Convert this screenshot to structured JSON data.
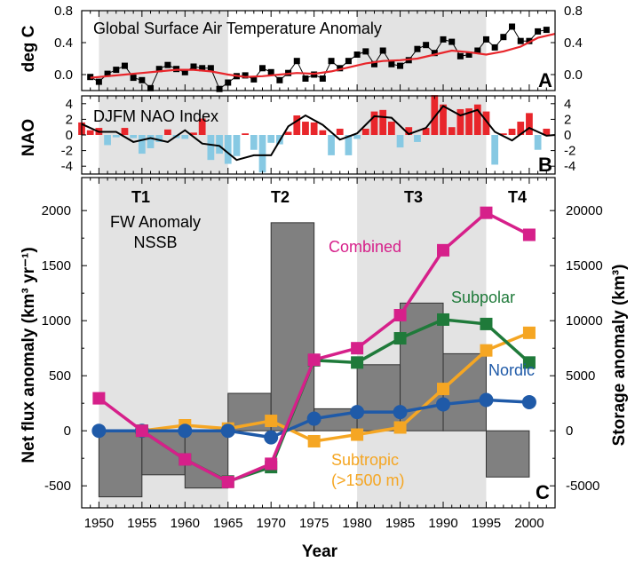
{
  "figure": {
    "xlabel": "Year",
    "x_ticks": [
      1950,
      1955,
      1960,
      1965,
      1970,
      1975,
      1980,
      1985,
      1990,
      1995,
      2000
    ],
    "periods": [
      "T1",
      "T2",
      "T3",
      "T4"
    ],
    "shaded_spans": [
      [
        1950,
        1965
      ],
      [
        1980,
        1995
      ]
    ],
    "colors": {
      "shade": "#e3e3e3",
      "combined": "#d6208a",
      "subpolar": "#1f7a3a",
      "nordic": "#1f5aa8",
      "subtropic": "#f5a623",
      "bars": "#808080",
      "nao_pos": "#e8262b",
      "nao_neg": "#87c9e3",
      "temp_smooth": "#e8262b"
    }
  },
  "chart_data": [
    {
      "panel": "A",
      "type": "line",
      "title": "Global Surface Air Temperature Anomaly",
      "ylabel": "deg C",
      "yticks": [
        0.0,
        0.4,
        0.8
      ],
      "ytick_labels": [
        "0.0",
        "0.4",
        "0.8"
      ],
      "ylim": [
        -0.2,
        0.8
      ],
      "xlim": [
        1948,
        2003
      ],
      "series": [
        {
          "x": [
            1949,
            1950,
            1951,
            1952,
            1953,
            1954,
            1955,
            1956,
            1957,
            1958,
            1959,
            1960,
            1961,
            1962,
            1963,
            1964,
            1965,
            1966,
            1967,
            1968,
            1969,
            1970,
            1971,
            1972,
            1973,
            1974,
            1975,
            1976,
            1977,
            1978,
            1979,
            1980,
            1981,
            1982,
            1983,
            1984,
            1985,
            1986,
            1987,
            1988,
            1989,
            1990,
            1991,
            1992,
            1993,
            1994,
            1995,
            1996,
            1997,
            1998,
            1999,
            2000,
            2001,
            2002
          ],
          "values": [
            -0.03,
            -0.09,
            0.01,
            0.06,
            0.11,
            -0.04,
            -0.07,
            -0.17,
            0.07,
            0.12,
            0.07,
            0.03,
            0.1,
            0.08,
            0.08,
            -0.18,
            -0.1,
            -0.02,
            -0.01,
            -0.06,
            0.08,
            0.03,
            -0.07,
            0.02,
            0.17,
            -0.05,
            0.0,
            -0.05,
            0.17,
            0.08,
            0.17,
            0.25,
            0.29,
            0.13,
            0.3,
            0.13,
            0.11,
            0.18,
            0.32,
            0.37,
            0.27,
            0.44,
            0.41,
            0.23,
            0.25,
            0.3,
            0.44,
            0.34,
            0.47,
            0.6,
            0.42,
            0.42,
            0.54,
            0.56
          ]
        },
        {
          "x": [
            1949,
            1951,
            1953,
            1955,
            1957,
            1959,
            1961,
            1963,
            1965,
            1967,
            1969,
            1971,
            1973,
            1975,
            1977,
            1979,
            1981,
            1983,
            1985,
            1987,
            1989,
            1991,
            1993,
            1995,
            1997,
            1999,
            2001,
            2003
          ],
          "values": [
            -0.04,
            -0.02,
            0.0,
            0.02,
            0.04,
            0.06,
            0.06,
            0.04,
            0.0,
            -0.03,
            -0.02,
            0.0,
            0.02,
            0.01,
            0.04,
            0.09,
            0.14,
            0.17,
            0.18,
            0.2,
            0.25,
            0.3,
            0.28,
            0.25,
            0.29,
            0.35,
            0.46,
            0.51
          ]
        }
      ]
    },
    {
      "panel": "B",
      "type": "bar",
      "title": "DJFM NAO Index",
      "ylabel": "NAO",
      "yticks": [
        -4,
        -2,
        0,
        2,
        4
      ],
      "ytick_labels": [
        "-4",
        "-2",
        "0",
        "2",
        "4"
      ],
      "ylim": [
        -5,
        5
      ],
      "xlim": [
        1948,
        2003
      ],
      "x": [
        1948,
        1949,
        1950,
        1951,
        1952,
        1953,
        1954,
        1955,
        1956,
        1957,
        1958,
        1959,
        1960,
        1961,
        1962,
        1963,
        1964,
        1965,
        1966,
        1967,
        1968,
        1969,
        1970,
        1971,
        1972,
        1973,
        1974,
        1975,
        1976,
        1977,
        1978,
        1979,
        1980,
        1981,
        1982,
        1983,
        1984,
        1985,
        1986,
        1987,
        1988,
        1989,
        1990,
        1991,
        1992,
        1993,
        1994,
        1995,
        1996,
        1997,
        1998,
        1999,
        2000,
        2001,
        2002
      ],
      "values": [
        1.6,
        0.6,
        0.9,
        -1.3,
        -0.3,
        0.9,
        -0.4,
        -2.4,
        -1.7,
        -0.9,
        0.7,
        -0.4,
        -0.5,
        0.3,
        2.1,
        -3.2,
        -2.4,
        -3.7,
        -2.7,
        0.2,
        -1.9,
        -4.8,
        -1.0,
        -1.2,
        0.4,
        2.5,
        1.7,
        1.6,
        0.6,
        -2.6,
        0.8,
        -2.6,
        -0.5,
        0.8,
        3.0,
        3.2,
        1.7,
        -1.6,
        1.0,
        -0.9,
        0.9,
        5.1,
        3.9,
        1.0,
        3.3,
        3.4,
        3.9,
        3.0,
        -3.8,
        0.2,
        0.8,
        1.7,
        2.8,
        -1.9,
        0.8
      ],
      "smoothed": {
        "x": [
          1948,
          1950,
          1952,
          1954,
          1956,
          1958,
          1960,
          1962,
          1964,
          1966,
          1968,
          1970,
          1972,
          1974,
          1976,
          1978,
          1980,
          1982,
          1984,
          1986,
          1988,
          1990,
          1992,
          1994,
          1996,
          1998,
          2000,
          2002,
          2003
        ],
        "values": [
          1.4,
          0.4,
          0.4,
          -0.9,
          -0.4,
          -0.9,
          0.6,
          -1.1,
          -1.4,
          -3.2,
          -2.6,
          -2.6,
          1.1,
          2.5,
          1.3,
          -0.6,
          0.2,
          2.4,
          2.2,
          0.1,
          0.9,
          3.7,
          2.5,
          3.2,
          0.4,
          -0.7,
          0.9,
          -0.1,
          0.0
        ]
      }
    },
    {
      "panel": "C",
      "type": "line",
      "ylabel_left": "Net flux anomaly (km³ yr⁻¹)",
      "ylabel_right": "Storage anomaly (km³)",
      "yticks_left": [
        -500,
        0,
        500,
        1000,
        1500,
        2000
      ],
      "yticks_right": [
        -5000,
        0,
        5000,
        10000,
        15000,
        20000
      ],
      "ylim_left": [
        -700,
        2300
      ],
      "xlim": [
        1948,
        2003
      ],
      "annotation": [
        "FW Anomaly",
        "NSSB"
      ],
      "bars": {
        "name": "FW Anomaly NSSB",
        "spans": [
          [
            1950,
            1955
          ],
          [
            1955,
            1960
          ],
          [
            1960,
            1965
          ],
          [
            1965,
            1970
          ],
          [
            1970,
            1975
          ],
          [
            1975,
            1980
          ],
          [
            1980,
            1985
          ],
          [
            1985,
            1990
          ],
          [
            1990,
            1995
          ],
          [
            1995,
            2000
          ]
        ],
        "values": [
          -600,
          -400,
          -520,
          340,
          1890,
          200,
          600,
          1160,
          700,
          -420
        ]
      },
      "series": [
        {
          "name": "Combined",
          "x": [
            1950,
            1955,
            1960,
            1965,
            1970,
            1975,
            1980,
            1985,
            1990,
            1995,
            2000
          ],
          "values": [
            2950,
            0,
            -2600,
            -4650,
            -3000,
            6450,
            7500,
            10500,
            16400,
            19800,
            17800
          ]
        },
        {
          "name": "Subpolar",
          "x": [
            1955,
            1960,
            1965,
            1970,
            1975,
            1980,
            1985,
            1990,
            1995,
            2000
          ],
          "values": [
            0,
            -2600,
            -4600,
            -3300,
            6400,
            6200,
            8400,
            10100,
            9700,
            6200
          ]
        },
        {
          "name": "Nordic",
          "x": [
            1950,
            1955,
            1960,
            1965,
            1970,
            1975,
            1980,
            1985,
            1990,
            1995,
            2000
          ],
          "values": [
            0,
            0,
            0,
            0,
            -600,
            1100,
            1700,
            1700,
            2400,
            2800,
            2600
          ]
        },
        {
          "name": "Subtropic (>1500 m)",
          "x": [
            1955,
            1960,
            1965,
            1970,
            1975,
            1980,
            1985,
            1990,
            1995,
            2000
          ],
          "values": [
            0,
            500,
            200,
            900,
            -950,
            -350,
            300,
            3800,
            7300,
            8900
          ]
        }
      ],
      "labels": {
        "combined": "Combined",
        "subpolar": "Subpolar",
        "nordic": "Nordic",
        "subtropic_1": "Subtropic",
        "subtropic_2": "(>1500 m)"
      }
    }
  ]
}
